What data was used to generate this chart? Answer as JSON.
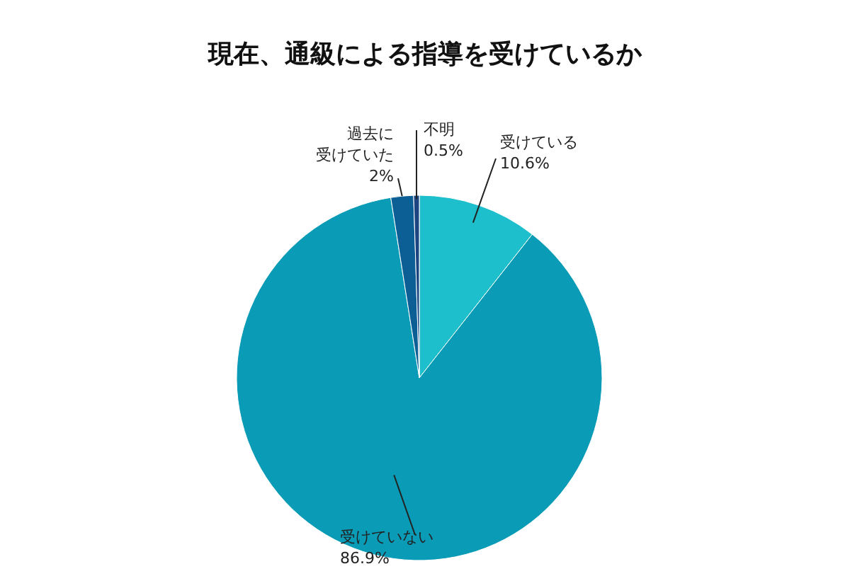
{
  "chart_data": {
    "type": "pie",
    "title": "現在、通級による指導を受けているか",
    "categories": [
      "受けている",
      "受けていない",
      "過去に受けていた",
      "不明"
    ],
    "values": [
      10.6,
      86.9,
      2,
      0.5
    ],
    "colors": [
      "#1cbfcb",
      "#0a9bb7",
      "#0c5f95",
      "#1b4480"
    ],
    "value_labels": [
      "10.6%",
      "86.9%",
      "2%",
      "0.5%"
    ]
  }
}
